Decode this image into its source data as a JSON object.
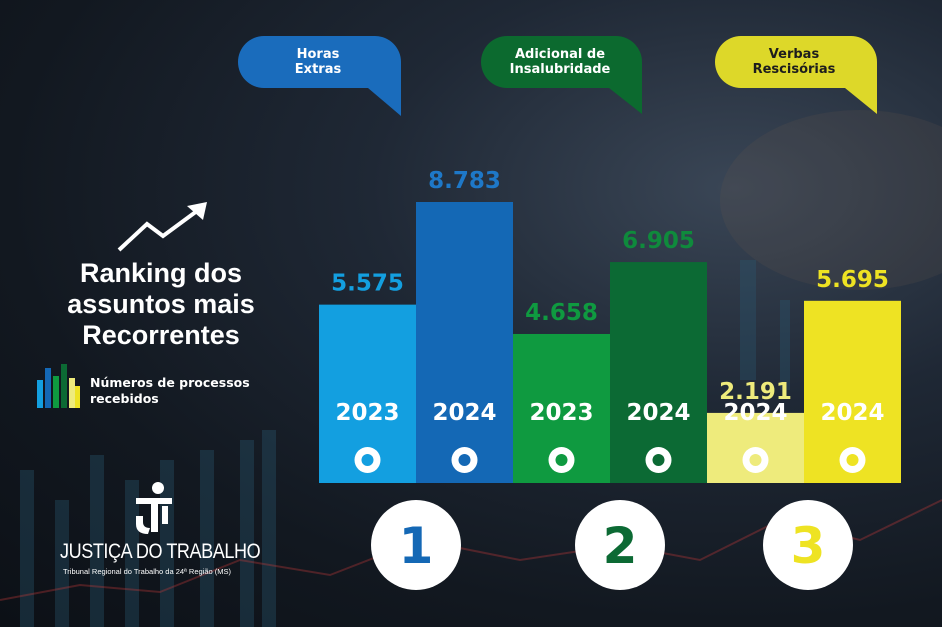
{
  "colors": {
    "blue_light": "#139fe0",
    "blue_dark": "#1468b5",
    "green_light": "#0f9a40",
    "green_dark": "#0c6a34",
    "yellow_light": "#eeeb7c",
    "yellow_dark": "#eee323"
  },
  "heading": {
    "title": "Ranking dos\nassuntos mais\nRecorrentes",
    "legend": "Números de processos\nrecebidos"
  },
  "logo": {
    "title": "JUSTIÇA DO TRABALHO",
    "subtitle": "Tribunal Regional do Trabalho da 24ª Região (MS)"
  },
  "bubbles": [
    {
      "label": "Horas\nExtras"
    },
    {
      "label": "Adicional de\nInsalubridade"
    },
    {
      "label": "Verbas\nRescisórias"
    }
  ],
  "ranks": [
    "1",
    "2",
    "3"
  ],
  "chart_data": {
    "type": "bar",
    "value_format": "pt-BR thousands",
    "categories": [
      "Horas Extras",
      "Adicional de Insalubridade",
      "Verbas Rescisórias"
    ],
    "bars": [
      {
        "group": "Horas Extras",
        "year": "2023",
        "value": 5575,
        "label": "5.575",
        "color": "blue_light"
      },
      {
        "group": "Horas Extras",
        "year": "2024",
        "value": 8783,
        "label": "8.783",
        "color": "blue_dark"
      },
      {
        "group": "Adicional de Insalubridade",
        "year": "2023",
        "value": 4658,
        "label": "4.658",
        "color": "green_light"
      },
      {
        "group": "Adicional de Insalubridade",
        "year": "2024",
        "value": 6905,
        "label": "6.905",
        "color": "green_dark"
      },
      {
        "group": "Verbas Rescisórias",
        "year": "2024",
        "value": 2191,
        "label": "2.191",
        "color": "yellow_light"
      },
      {
        "group": "Verbas Rescisórias",
        "year": "2024",
        "value": 5695,
        "label": "5.695",
        "color": "yellow_dark"
      }
    ],
    "ylim": [
      0,
      8783
    ],
    "grid": false
  }
}
